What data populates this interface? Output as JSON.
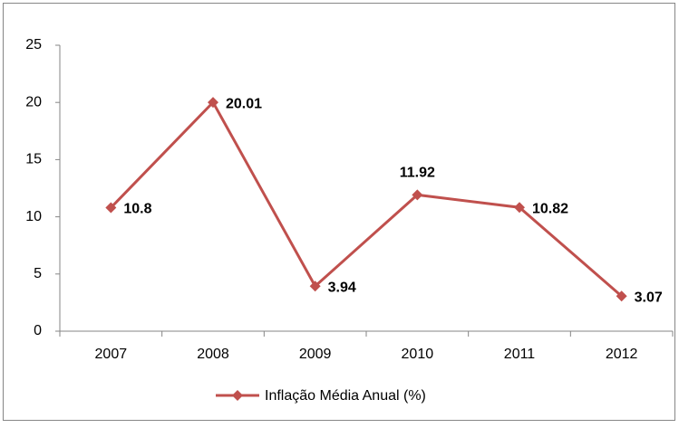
{
  "chart_data": {
    "type": "line",
    "categories": [
      "2007",
      "2008",
      "2009",
      "2010",
      "2011",
      "2012"
    ],
    "series": [
      {
        "name": "Inflação Média Anual (%)",
        "color": "#c0504d",
        "values": [
          10.8,
          20.01,
          3.94,
          11.92,
          10.82,
          3.07
        ]
      }
    ],
    "ylim": [
      0,
      25
    ],
    "yticks": [
      0,
      5,
      10,
      15,
      20,
      25
    ],
    "grid": false,
    "legend": "bottom"
  }
}
